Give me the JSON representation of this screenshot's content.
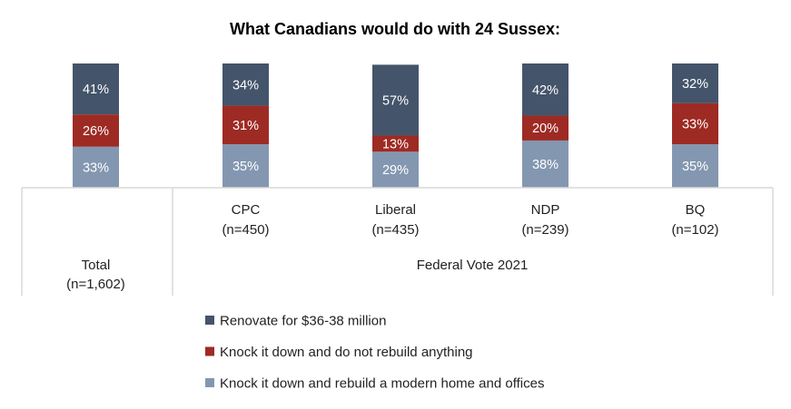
{
  "chart_data": {
    "type": "bar",
    "stacked": true,
    "title": "What Canadians would do with 24 Sussex:",
    "categories": [
      "Total",
      "CPC",
      "Liberal",
      "NDP",
      "BQ"
    ],
    "category_sublabels": [
      "(n=1,602)",
      "(n=450)",
      "(n=435)",
      "(n=239)",
      "(n=102)"
    ],
    "group_label": "Federal Vote 2021",
    "series": [
      {
        "name": "Knock it down and rebuild a modern home and offices",
        "color": "#8497B0",
        "values": [
          33,
          35,
          29,
          38,
          35
        ]
      },
      {
        "name": "Knock it down and do not rebuild anything",
        "color": "#9E2A24",
        "values": [
          26,
          31,
          13,
          20,
          33
        ]
      },
      {
        "name": "Renovate for $36-38 million",
        "color": "#44546A",
        "values": [
          41,
          34,
          57,
          42,
          32
        ]
      }
    ],
    "legend_order": [
      2,
      1,
      0
    ],
    "legend_position": "bottom",
    "ylim": [
      0,
      100
    ],
    "value_suffix": "%"
  }
}
